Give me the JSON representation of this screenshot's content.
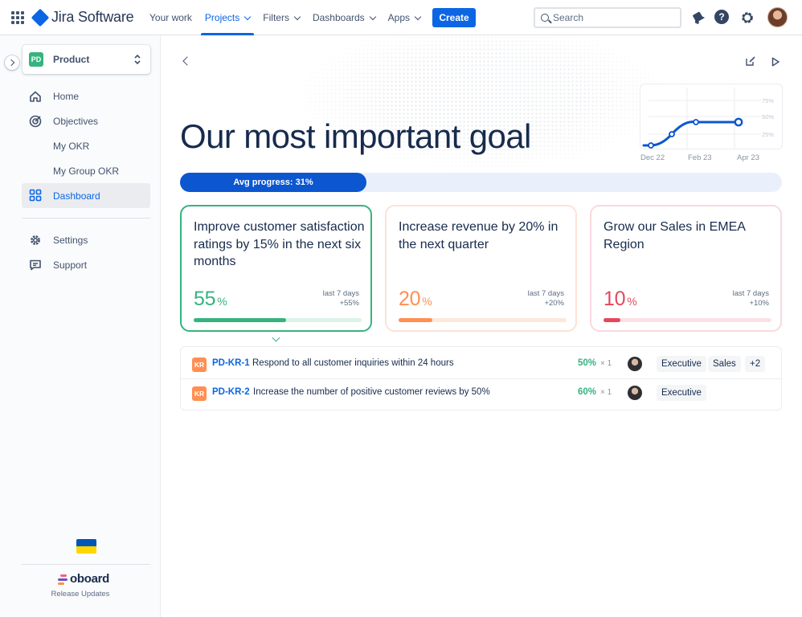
{
  "topbar": {
    "app_name": "Jira Software",
    "nav": [
      {
        "label": "Your work",
        "dropdown": false,
        "active": false
      },
      {
        "label": "Projects",
        "dropdown": true,
        "active": true
      },
      {
        "label": "Filters",
        "dropdown": true,
        "active": false
      },
      {
        "label": "Dashboards",
        "dropdown": true,
        "active": false
      },
      {
        "label": "Apps",
        "dropdown": true,
        "active": false
      }
    ],
    "create_label": "Create",
    "search_placeholder": "Search",
    "help_glyph": "?"
  },
  "sidebar": {
    "project": {
      "badge": "PD",
      "name": "Product"
    },
    "items": [
      {
        "label": "Home",
        "icon": "home-icon"
      },
      {
        "label": "Objectives",
        "icon": "target-icon"
      },
      {
        "label": "My OKR",
        "icon": null
      },
      {
        "label": "My Group OKR",
        "icon": null
      },
      {
        "label": "Dashboard",
        "icon": "dashboard-grid-icon",
        "active": true
      }
    ],
    "secondary_items": [
      {
        "label": "Settings",
        "icon": "gear-icon"
      },
      {
        "label": "Support",
        "icon": "chat-icon"
      }
    ],
    "footer": {
      "brand": "oboard",
      "release_label": "Release Updates"
    }
  },
  "main": {
    "title": "Our most important goal",
    "avg_progress": {
      "label": "Avg progress: 31%",
      "value": 31
    },
    "trend": {
      "x_ticks": [
        "Dec 22",
        "Feb 23",
        "Apr 23"
      ],
      "y_ticks": [
        "75%",
        "50%",
        "25%"
      ]
    },
    "objectives": [
      {
        "title": "Improve customer satisfaction ratings by 15% in the next six months",
        "percent": "55",
        "percent_sign": "%",
        "period": "last 7 days",
        "change": "+55%",
        "progress": 55,
        "color": "#36B37E",
        "track": "#DDF2E8",
        "border": "#36B37E",
        "selected": true
      },
      {
        "title": "Increase revenue by 20% in the next quarter",
        "percent": "20",
        "percent_sign": "%",
        "period": "last 7 days",
        "change": "+20%",
        "progress": 20,
        "color": "#FF8F52",
        "track": "#FDE8DC",
        "border": "#FCE3D6",
        "selected": false
      },
      {
        "title": "Grow our Sales in EMEA Region",
        "percent": "10",
        "percent_sign": "%",
        "period": "last 7 days",
        "change": "+10%",
        "progress": 10,
        "color": "#E5485B",
        "track": "#FBE1E5",
        "border": "#F9D9DE",
        "selected": false
      }
    ],
    "key_results": [
      {
        "badge": "KR",
        "key": "PD-KR-1",
        "text": "Respond to all customer inquiries within 24 hours",
        "percent": "50%",
        "weight": "× 1",
        "tags": [
          "Executive",
          "Sales",
          "+2"
        ]
      },
      {
        "badge": "KR",
        "key": "PD-KR-2",
        "text": "Increase the number of positive customer reviews by 50%",
        "percent": "60%",
        "weight": "× 1",
        "tags": [
          "Executive"
        ]
      }
    ]
  },
  "colors": {
    "accent": "#0C66E4",
    "progress_fill": "#0C56D0",
    "progress_track": "#E9F0FC"
  }
}
